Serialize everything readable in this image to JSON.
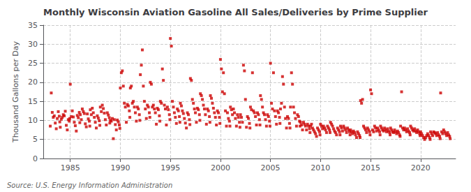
{
  "chart_data": {
    "type": "scatter",
    "title": "Monthly Wisconsin Aviation Gasoline All Sales/Deliveries by Prime Supplier",
    "ylabel": "Thousand Gallons per Day",
    "annotations": [
      "Source: U.S. Energy Information Administration"
    ],
    "color": "#cc0000",
    "marker": "square",
    "grid": true,
    "xlim": [
      1982.3,
      2023.5
    ],
    "ylim": [
      0,
      35
    ],
    "xticks": [
      1985,
      1990,
      1995,
      2000,
      2005,
      2010,
      2015,
      2020
    ],
    "yticks": [
      0,
      5,
      10,
      15,
      20,
      25,
      30,
      35
    ],
    "x": [
      1983.0,
      1983.1,
      1983.2,
      1983.3,
      1983.4,
      1983.5,
      1983.6,
      1983.7,
      1983.8,
      1983.9,
      1983.95,
      1984.0,
      1984.1,
      1984.2,
      1984.3,
      1984.4,
      1984.5,
      1984.6,
      1984.7,
      1984.8,
      1984.9,
      1984.95,
      1985.0,
      1985.1,
      1985.2,
      1985.3,
      1985.4,
      1985.5,
      1985.6,
      1985.7,
      1985.8,
      1985.9,
      1985.95,
      1986.0,
      1986.1,
      1986.2,
      1986.3,
      1986.4,
      1986.5,
      1986.6,
      1986.7,
      1986.8,
      1986.9,
      1986.95,
      1987.0,
      1987.1,
      1987.2,
      1987.3,
      1987.4,
      1987.5,
      1987.6,
      1987.7,
      1987.8,
      1987.9,
      1987.95,
      1988.0,
      1988.1,
      1988.2,
      1988.3,
      1988.4,
      1988.5,
      1988.6,
      1988.7,
      1988.8,
      1988.9,
      1988.95,
      1989.0,
      1989.1,
      1989.2,
      1989.3,
      1989.4,
      1989.5,
      1989.6,
      1989.7,
      1989.8,
      1989.9,
      1989.95,
      1990.0,
      1990.1,
      1990.2,
      1990.3,
      1990.4,
      1990.5,
      1990.6,
      1990.7,
      1990.8,
      1990.9,
      1990.95,
      1991.0,
      1991.1,
      1991.2,
      1991.3,
      1991.4,
      1991.5,
      1991.6,
      1991.7,
      1991.8,
      1991.9,
      1991.95,
      1992.0,
      1992.1,
      1992.2,
      1992.3,
      1992.4,
      1992.5,
      1992.6,
      1992.7,
      1992.8,
      1992.9,
      1992.95,
      1993.0,
      1993.1,
      1993.2,
      1993.3,
      1993.4,
      1993.5,
      1993.6,
      1993.7,
      1993.8,
      1993.9,
      1993.95,
      1994.0,
      1994.1,
      1994.2,
      1994.3,
      1994.4,
      1994.5,
      1994.6,
      1994.7,
      1994.8,
      1994.9,
      1994.95,
      1995.0,
      1995.1,
      1995.2,
      1995.3,
      1995.4,
      1995.5,
      1995.6,
      1995.7,
      1995.8,
      1995.9,
      1995.95,
      1996.0,
      1996.1,
      1996.2,
      1996.3,
      1996.4,
      1996.5,
      1996.6,
      1996.7,
      1996.8,
      1996.9,
      1996.95,
      1997.0,
      1997.1,
      1997.2,
      1997.3,
      1997.4,
      1997.5,
      1997.6,
      1997.7,
      1997.8,
      1997.9,
      1997.95,
      1998.0,
      1998.1,
      1998.2,
      1998.3,
      1998.4,
      1998.5,
      1998.6,
      1998.7,
      1998.8,
      1998.9,
      1998.95,
      1999.0,
      1999.1,
      1999.2,
      1999.3,
      1999.4,
      1999.5,
      1999.6,
      1999.7,
      1999.8,
      1999.9,
      1999.95,
      2000.0,
      2000.1,
      2000.2,
      2000.3,
      2000.4,
      2000.5,
      2000.6,
      2000.7,
      2000.8,
      2000.9,
      2000.95,
      2001.0,
      2001.1,
      2001.2,
      2001.3,
      2001.4,
      2001.5,
      2001.6,
      2001.7,
      2001.8,
      2001.9,
      2001.95,
      2002.0,
      2002.1,
      2002.2,
      2002.3,
      2002.4,
      2002.5,
      2002.6,
      2002.7,
      2002.8,
      2002.9,
      2002.95,
      2003.0,
      2003.1,
      2003.2,
      2003.3,
      2003.4,
      2003.5,
      2003.6,
      2003.7,
      2003.8,
      2003.9,
      2003.95,
      2004.0,
      2004.1,
      2004.2,
      2004.3,
      2004.4,
      2004.5,
      2004.6,
      2004.7,
      2004.8,
      2004.9,
      2004.95,
      2005.0,
      2005.1,
      2005.2,
      2005.3,
      2005.4,
      2005.5,
      2005.6,
      2005.7,
      2005.8,
      2005.9,
      2005.95,
      2006.0,
      2006.1,
      2006.2,
      2006.3,
      2006.4,
      2006.5,
      2006.6,
      2006.7,
      2006.8,
      2006.9,
      2006.95,
      2007.0,
      2007.1,
      2007.2,
      2007.3,
      2007.4,
      2007.5,
      2007.6,
      2007.7,
      2007.8,
      2007.9,
      2007.95,
      2008.0,
      2008.1,
      2008.2,
      2008.3,
      2008.4,
      2008.5,
      2008.6,
      2008.7,
      2008.8,
      2008.9,
      2008.95,
      2009.0,
      2009.1,
      2009.2,
      2009.3,
      2009.4,
      2009.5,
      2009.6,
      2009.7,
      2009.8,
      2009.9,
      2009.95,
      2010.0,
      2010.1,
      2010.2,
      2010.3,
      2010.4,
      2010.5,
      2010.6,
      2010.7,
      2010.8,
      2010.9,
      2010.95,
      2011.0,
      2011.1,
      2011.2,
      2011.3,
      2011.4,
      2011.5,
      2011.6,
      2011.7,
      2011.8,
      2011.9,
      2011.95,
      2012.0,
      2012.1,
      2012.2,
      2012.3,
      2012.4,
      2012.5,
      2012.6,
      2012.7,
      2012.8,
      2012.9,
      2012.95,
      2013.0,
      2013.1,
      2013.2,
      2013.3,
      2013.4,
      2013.5,
      2013.6,
      2013.7,
      2013.8,
      2013.9,
      2013.95,
      2014.0,
      2014.1,
      2014.2,
      2014.3,
      2014.4,
      2014.5,
      2014.6,
      2014.7,
      2014.8,
      2014.9,
      2014.95,
      2015.0,
      2015.1,
      2015.2,
      2015.3,
      2015.4,
      2015.5,
      2015.6,
      2015.7,
      2015.8,
      2015.9,
      2015.95,
      2016.0,
      2016.1,
      2016.2,
      2016.3,
      2016.4,
      2016.5,
      2016.6,
      2016.7,
      2016.8,
      2016.9,
      2016.95,
      2017.0,
      2017.1,
      2017.2,
      2017.3,
      2017.4,
      2017.5,
      2017.6,
      2017.7,
      2017.8,
      2017.9,
      2017.95,
      2018.0,
      2018.1,
      2018.2,
      2018.3,
      2018.4,
      2018.5,
      2018.6,
      2018.7,
      2018.8,
      2018.9,
      2018.95,
      2019.0,
      2019.1,
      2019.2,
      2019.3,
      2019.4,
      2019.5,
      2019.6,
      2019.7,
      2019.8,
      2019.9,
      2019.95,
      2020.0,
      2020.1,
      2020.2,
      2020.3,
      2020.4,
      2020.5,
      2020.6,
      2020.7,
      2020.8,
      2020.9,
      2020.95,
      2021.0,
      2021.1,
      2021.2,
      2021.3,
      2021.4,
      2021.5,
      2021.6,
      2021.7,
      2021.8,
      2021.9,
      2021.95,
      2022.0,
      2022.1,
      2022.2,
      2022.3,
      2022.4,
      2022.5,
      2022.6,
      2022.7,
      2022.8,
      2022.9,
      2022.95
    ],
    "values": [
      8.5,
      17.2,
      12.1,
      10.8,
      11.2,
      9.3,
      7.8,
      10.5,
      12.3,
      11.1,
      9.6,
      8.2,
      10.3,
      10.8,
      11.5,
      11.2,
      12.4,
      8.7,
      7.5,
      10.2,
      9.8,
      10.5,
      19.5,
      11.0,
      12.5,
      10.9,
      9.5,
      8.6,
      7.2,
      11.3,
      10.7,
      12.1,
      9.4,
      11.5,
      10.2,
      13.0,
      12.3,
      11.8,
      9.1,
      8.3,
      11.7,
      10.4,
      9.8,
      8.5,
      12.8,
      11.5,
      13.2,
      12.0,
      10.8,
      9.5,
      8.0,
      11.2,
      10.6,
      9.9,
      8.7,
      13.5,
      12.3,
      14.0,
      13.1,
      11.9,
      10.2,
      8.8,
      12.0,
      11.4,
      10.7,
      9.3,
      10.0,
      9.8,
      10.5,
      5.2,
      10.2,
      8.9,
      7.5,
      10.1,
      9.6,
      8.8,
      7.9,
      18.5,
      22.5,
      23.0,
      19.0,
      14.5,
      13.5,
      9.5,
      14.2,
      13.8,
      12.5,
      10.8,
      18.5,
      19.0,
      14.5,
      15.0,
      13.5,
      12.0,
      9.8,
      13.5,
      13.0,
      11.5,
      10.0,
      22.0,
      24.5,
      28.5,
      19.0,
      15.0,
      13.0,
      10.5,
      14.0,
      13.5,
      12.0,
      10.8,
      20.0,
      19.5,
      13.5,
      14.0,
      13.0,
      12.0,
      9.0,
      13.2,
      12.8,
      11.2,
      9.8,
      15.0,
      14.5,
      23.5,
      20.5,
      14.0,
      13.0,
      8.8,
      13.5,
      12.8,
      11.5,
      10.2,
      31.5,
      29.5,
      15.0,
      13.5,
      12.0,
      10.8,
      9.2,
      13.0,
      12.5,
      11.0,
      9.5,
      14.5,
      13.8,
      12.5,
      11.8,
      10.5,
      9.3,
      8.0,
      12.0,
      11.5,
      10.2,
      8.9,
      21.0,
      20.5,
      15.5,
      14.5,
      13.0,
      12.0,
      9.5,
      13.2,
      12.8,
      11.5,
      10.0,
      17.0,
      16.5,
      15.5,
      14.0,
      13.0,
      11.5,
      9.0,
      13.0,
      12.5,
      11.0,
      9.5,
      16.5,
      15.8,
      14.5,
      13.2,
      12.0,
      10.8,
      8.8,
      12.5,
      12.0,
      10.8,
      9.2,
      26.0,
      23.5,
      17.5,
      22.5,
      17.0,
      12.5,
      8.5,
      12.0,
      10.5,
      9.8,
      8.5,
      13.5,
      12.8,
      11.5,
      13.0,
      12.0,
      10.5,
      8.5,
      11.5,
      10.8,
      9.5,
      8.2,
      11.5,
      10.8,
      9.5,
      24.5,
      23.0,
      15.5,
      8.2,
      11.0,
      10.5,
      9.2,
      8.0,
      13.5,
      12.8,
      22.5,
      12.5,
      12.0,
      11.0,
      8.8,
      12.0,
      11.5,
      10.2,
      8.8,
      16.5,
      15.5,
      13.5,
      12.0,
      11.5,
      10.2,
      8.5,
      11.5,
      11.0,
      9.8,
      8.5,
      25.0,
      14.5,
      13.0,
      22.5,
      12.5,
      11.0,
      9.0,
      12.5,
      12.0,
      10.8,
      9.2,
      13.0,
      14.5,
      21.5,
      19.5,
      13.5,
      10.5,
      8.0,
      11.0,
      10.5,
      9.2,
      8.0,
      13.5,
      22.5,
      19.5,
      13.5,
      12.0,
      10.5,
      8.5,
      11.5,
      11.0,
      9.8,
      8.5,
      9.5,
      8.8,
      7.5,
      9.5,
      9.0,
      8.5,
      7.5,
      9.0,
      8.5,
      7.8,
      6.8,
      8.5,
      9.0,
      8.0,
      7.5,
      7.0,
      6.5,
      5.8,
      8.0,
      7.5,
      7.0,
      6.2,
      9.0,
      8.5,
      7.8,
      8.5,
      8.0,
      7.5,
      6.8,
      8.5,
      8.0,
      7.5,
      6.8,
      9.5,
      9.0,
      8.5,
      7.8,
      7.2,
      6.8,
      6.2,
      8.0,
      7.5,
      7.0,
      6.2,
      8.5,
      8.0,
      7.2,
      8.5,
      8.0,
      7.5,
      6.8,
      8.0,
      7.5,
      7.0,
      6.2,
      7.5,
      7.0,
      6.5,
      7.2,
      6.8,
      6.2,
      5.5,
      7.0,
      6.5,
      6.0,
      5.5,
      15.2,
      14.5,
      15.5,
      8.5,
      8.0,
      7.5,
      6.8,
      8.0,
      7.5,
      7.0,
      6.2,
      18.0,
      17.0,
      7.5,
      7.0,
      8.5,
      8.0,
      7.2,
      8.0,
      7.5,
      7.0,
      6.2,
      8.5,
      8.0,
      7.5,
      7.2,
      8.0,
      7.5,
      7.0,
      7.8,
      7.2,
      6.8,
      6.2,
      8.0,
      7.5,
      7.0,
      6.8,
      7.5,
      7.0,
      6.5,
      7.2,
      6.8,
      6.2,
      5.8,
      8.5,
      17.5,
      8.0,
      7.5,
      8.0,
      7.5,
      7.0,
      7.8,
      7.2,
      6.8,
      6.2,
      8.5,
      8.0,
      7.5,
      7.2,
      7.8,
      7.2,
      6.8,
      7.5,
      7.0,
      6.5,
      6.0,
      7.0,
      6.5,
      6.0,
      5.5,
      5.0,
      5.5,
      6.0,
      6.5,
      6.0,
      5.5,
      5.0,
      7.0,
      6.5,
      6.0,
      7.0,
      6.8,
      6.5,
      6.0,
      6.8,
      6.2,
      5.8,
      5.2,
      17.2,
      7.0,
      6.5,
      7.5,
      7.0,
      6.5,
      6.0,
      6.8,
      6.2,
      5.8,
      5.2
    ]
  }
}
